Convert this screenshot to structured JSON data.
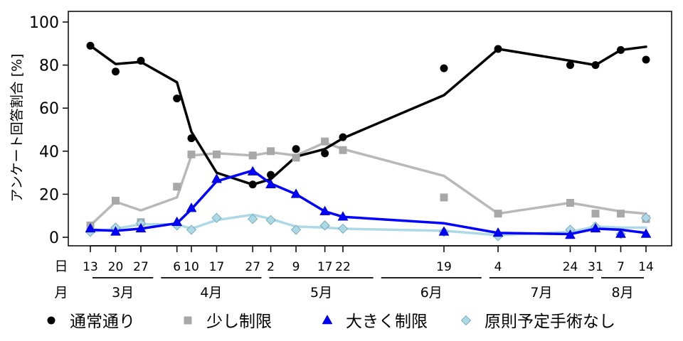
{
  "chart_data": {
    "type": "line",
    "ylabel": "アンケート回答割合 [%]",
    "ylim": [
      0,
      100
    ],
    "yticks": [
      0,
      20,
      40,
      60,
      80,
      100
    ],
    "x_row_label": "日",
    "month_row_label": "月",
    "x_ticks": [
      {
        "day": "13",
        "date": "2020-03-13"
      },
      {
        "day": "20",
        "date": "2020-03-20"
      },
      {
        "day": "27",
        "date": "2020-03-27"
      },
      {
        "day": "6",
        "date": "2020-04-06"
      },
      {
        "day": "10",
        "date": "2020-04-10"
      },
      {
        "day": "17",
        "date": "2020-04-17"
      },
      {
        "day": "27",
        "date": "2020-04-27"
      },
      {
        "day": "2",
        "date": "2020-05-02"
      },
      {
        "day": "9",
        "date": "2020-05-09"
      },
      {
        "day": "17",
        "date": "2020-05-17"
      },
      {
        "day": "22",
        "date": "2020-05-22"
      },
      {
        "day": "19",
        "date": "2020-06-19"
      },
      {
        "day": "4",
        "date": "2020-07-04"
      },
      {
        "day": "24",
        "date": "2020-07-24"
      },
      {
        "day": "31",
        "date": "2020-07-31"
      },
      {
        "day": "7",
        "date": "2020-08-07"
      },
      {
        "day": "14",
        "date": "2020-08-14"
      }
    ],
    "months": [
      {
        "label": "3月",
        "start": "2020-03-13",
        "end": "2020-03-31"
      },
      {
        "label": "4月",
        "start": "2020-04-01",
        "end": "2020-04-30"
      },
      {
        "label": "5月",
        "start": "2020-05-01",
        "end": "2020-05-31"
      },
      {
        "label": "6月",
        "start": "2020-06-01",
        "end": "2020-06-30"
      },
      {
        "label": "7月",
        "start": "2020-07-01",
        "end": "2020-07-31"
      },
      {
        "label": "8月",
        "start": "2020-08-01",
        "end": "2020-08-14"
      }
    ],
    "series": [
      {
        "name": "通常通り",
        "color": "#000000",
        "line_color": "#000000",
        "marker": "circle",
        "points": [
          [
            "2020-03-13",
            89
          ],
          [
            "2020-03-20",
            77
          ],
          [
            "2020-03-27",
            82
          ],
          [
            "2020-04-06",
            64.5
          ],
          [
            "2020-04-10",
            46
          ],
          [
            "2020-04-27",
            24.5
          ],
          [
            "2020-05-02",
            29
          ],
          [
            "2020-05-09",
            41
          ],
          [
            "2020-05-17",
            39
          ],
          [
            "2020-05-22",
            46.5
          ],
          [
            "2020-06-19",
            78.5
          ],
          [
            "2020-07-04",
            87.5
          ],
          [
            "2020-07-24",
            80
          ],
          [
            "2020-07-31",
            80
          ],
          [
            "2020-08-07",
            87
          ],
          [
            "2020-08-14",
            82.5
          ]
        ],
        "trend": [
          [
            "2020-03-13",
            89
          ],
          [
            "2020-03-20",
            80.5
          ],
          [
            "2020-03-27",
            81.5
          ],
          [
            "2020-04-06",
            72
          ],
          [
            "2020-04-10",
            49
          ],
          [
            "2020-04-17",
            30
          ],
          [
            "2020-04-27",
            24.5
          ],
          [
            "2020-05-02",
            27
          ],
          [
            "2020-05-09",
            37.5
          ],
          [
            "2020-05-17",
            41
          ],
          [
            "2020-05-22",
            46
          ],
          [
            "2020-06-19",
            66
          ],
          [
            "2020-07-04",
            87.5
          ],
          [
            "2020-07-24",
            82
          ],
          [
            "2020-07-31",
            80
          ],
          [
            "2020-08-07",
            87
          ],
          [
            "2020-08-14",
            88.5
          ]
        ]
      },
      {
        "name": "少し制限",
        "color": "#a8a8a8",
        "line_color": "#b8b8b8",
        "marker": "square",
        "points": [
          [
            "2020-03-13",
            5.5
          ],
          [
            "2020-03-20",
            17
          ],
          [
            "2020-03-27",
            7
          ],
          [
            "2020-04-06",
            23.5
          ],
          [
            "2020-04-10",
            38.5
          ],
          [
            "2020-04-17",
            38.5
          ],
          [
            "2020-04-27",
            38
          ],
          [
            "2020-05-02",
            40
          ],
          [
            "2020-05-09",
            37
          ],
          [
            "2020-05-17",
            44.5
          ],
          [
            "2020-05-22",
            40.5
          ],
          [
            "2020-06-19",
            18.5
          ],
          [
            "2020-07-04",
            11
          ],
          [
            "2020-07-24",
            16
          ],
          [
            "2020-07-31",
            11
          ],
          [
            "2020-08-07",
            11
          ],
          [
            "2020-08-14",
            8.5
          ]
        ],
        "trend": [
          [
            "2020-03-13",
            5.5
          ],
          [
            "2020-03-20",
            16.5
          ],
          [
            "2020-03-27",
            12.5
          ],
          [
            "2020-04-06",
            18.5
          ],
          [
            "2020-04-10",
            38
          ],
          [
            "2020-04-17",
            39
          ],
          [
            "2020-04-27",
            38
          ],
          [
            "2020-05-02",
            39.5
          ],
          [
            "2020-05-09",
            38
          ],
          [
            "2020-05-17",
            44
          ],
          [
            "2020-05-22",
            41
          ],
          [
            "2020-06-19",
            28.5
          ],
          [
            "2020-07-04",
            11
          ],
          [
            "2020-07-24",
            16
          ],
          [
            "2020-07-31",
            14
          ],
          [
            "2020-08-07",
            12
          ],
          [
            "2020-08-14",
            11
          ]
        ]
      },
      {
        "name": "大きく制限",
        "color": "#0000ff",
        "line_color": "#0000ff",
        "marker": "triangle",
        "points": [
          [
            "2020-03-13",
            4
          ],
          [
            "2020-03-20",
            2.5
          ],
          [
            "2020-03-27",
            4
          ],
          [
            "2020-04-06",
            7
          ],
          [
            "2020-04-10",
            13.5
          ],
          [
            "2020-04-17",
            27
          ],
          [
            "2020-04-27",
            30.5
          ],
          [
            "2020-05-02",
            24.5
          ],
          [
            "2020-05-09",
            20
          ],
          [
            "2020-05-17",
            12
          ],
          [
            "2020-05-22",
            9.5
          ],
          [
            "2020-06-19",
            2.5
          ],
          [
            "2020-07-04",
            2
          ],
          [
            "2020-07-24",
            1
          ],
          [
            "2020-07-31",
            4
          ],
          [
            "2020-08-07",
            1.5
          ],
          [
            "2020-08-14",
            1.5
          ]
        ],
        "trend": [
          [
            "2020-03-13",
            3.5
          ],
          [
            "2020-03-20",
            3
          ],
          [
            "2020-03-27",
            4
          ],
          [
            "2020-04-06",
            6.5
          ],
          [
            "2020-04-10",
            13
          ],
          [
            "2020-04-17",
            26
          ],
          [
            "2020-04-27",
            31
          ],
          [
            "2020-05-02",
            25
          ],
          [
            "2020-05-09",
            20
          ],
          [
            "2020-05-17",
            12
          ],
          [
            "2020-05-22",
            9.5
          ],
          [
            "2020-06-19",
            6.5
          ],
          [
            "2020-07-04",
            2
          ],
          [
            "2020-07-24",
            1.5
          ],
          [
            "2020-07-31",
            4
          ],
          [
            "2020-08-07",
            3.5
          ],
          [
            "2020-08-14",
            2
          ]
        ]
      },
      {
        "name": "原則予定手術なし",
        "color": "#add8e6",
        "line_color": "#add8e6",
        "marker": "diamond",
        "points": [
          [
            "2020-03-13",
            2.5
          ],
          [
            "2020-03-20",
            4.5
          ],
          [
            "2020-03-27",
            6.5
          ],
          [
            "2020-04-06",
            5.5
          ],
          [
            "2020-04-10",
            3.5
          ],
          [
            "2020-04-17",
            9
          ],
          [
            "2020-04-27",
            8.5
          ],
          [
            "2020-05-02",
            8
          ],
          [
            "2020-05-09",
            3.5
          ],
          [
            "2020-05-17",
            5.5
          ],
          [
            "2020-05-22",
            4
          ],
          [
            "2020-06-19",
            2.5
          ],
          [
            "2020-07-04",
            0.5
          ],
          [
            "2020-07-24",
            3.5
          ],
          [
            "2020-07-31",
            5
          ],
          [
            "2020-08-07",
            1.5
          ],
          [
            "2020-08-14",
            9
          ]
        ],
        "trend": [
          [
            "2020-03-13",
            2.5
          ],
          [
            "2020-03-20",
            4
          ],
          [
            "2020-03-27",
            6
          ],
          [
            "2020-04-06",
            6
          ],
          [
            "2020-04-10",
            4
          ],
          [
            "2020-04-17",
            8
          ],
          [
            "2020-04-27",
            10.5
          ],
          [
            "2020-05-02",
            8.5
          ],
          [
            "2020-05-09",
            5
          ],
          [
            "2020-05-17",
            4.5
          ],
          [
            "2020-05-22",
            4
          ],
          [
            "2020-06-19",
            3
          ],
          [
            "2020-07-04",
            1
          ],
          [
            "2020-07-24",
            2.5
          ],
          [
            "2020-07-31",
            5
          ],
          [
            "2020-08-07",
            4.5
          ],
          [
            "2020-08-14",
            4.5
          ]
        ]
      }
    ],
    "legend_position": "bottom"
  }
}
